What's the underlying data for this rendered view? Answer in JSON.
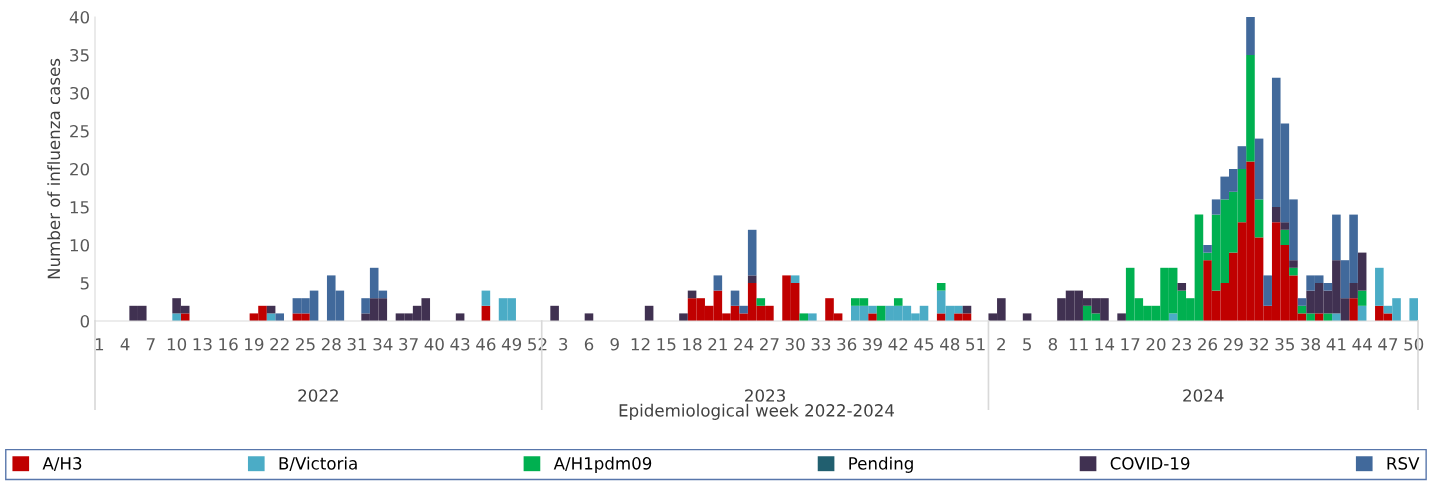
{
  "chart_data": {
    "type": "bar",
    "stacked": true,
    "xlabel": "Epidemiological week 2022-2024",
    "ylabel": "Number of influenza cases",
    "categories": [
      "1",
      null,
      null,
      "4",
      null,
      null,
      "7",
      null,
      null,
      "10",
      null,
      null,
      "13",
      null,
      null,
      "16",
      null,
      null,
      "19",
      null,
      null,
      "22",
      null,
      null,
      "25",
      null,
      null,
      "28",
      null,
      null,
      "31",
      null,
      null,
      "34",
      null,
      null,
      "37",
      null,
      null,
      "40",
      null,
      null,
      "43",
      null,
      null,
      "46",
      null,
      null,
      "49",
      null,
      null,
      "52",
      null,
      null,
      "3",
      null,
      null,
      "6",
      null,
      null,
      "9",
      null,
      null,
      "12",
      null,
      null,
      "15",
      null,
      null,
      "18",
      null,
      null,
      "21",
      null,
      null,
      "24",
      null,
      null,
      "27",
      null,
      null,
      "30",
      null,
      null,
      "33",
      null,
      null,
      "36",
      null,
      null,
      "39",
      null,
      null,
      "42",
      null,
      null,
      "45",
      null,
      null,
      "48",
      null,
      null,
      "51",
      null,
      null,
      "2",
      null,
      null,
      "5",
      null,
      null,
      "8",
      null,
      null,
      "11",
      null,
      null,
      "14",
      null,
      null,
      "17",
      null,
      null,
      "20",
      null,
      null,
      "23",
      null,
      null,
      "26",
      null,
      null,
      "29",
      null,
      null,
      "32",
      null,
      null,
      "35",
      null,
      null,
      "38",
      null,
      null,
      "41",
      null,
      null,
      "44",
      null,
      null,
      "47",
      null,
      null,
      "50"
    ],
    "series": [
      {
        "name": "A/H3",
        "color": "#c00000",
        "values": [
          0,
          0,
          0,
          0,
          0,
          0,
          0,
          0,
          0,
          0,
          1,
          0,
          0,
          0,
          0,
          0,
          0,
          0,
          1,
          2,
          0,
          0,
          0,
          1,
          1,
          0,
          0,
          0,
          0,
          0,
          0,
          0,
          0,
          0,
          0,
          0,
          0,
          0,
          0,
          0,
          0,
          0,
          0,
          0,
          0,
          2,
          0,
          0,
          0,
          0,
          0,
          0,
          0,
          0,
          0,
          0,
          0,
          0,
          0,
          0,
          0,
          0,
          0,
          0,
          0,
          0,
          0,
          0,
          0,
          3,
          3,
          2,
          4,
          1,
          2,
          1,
          5,
          2,
          2,
          0,
          6,
          5,
          0,
          0,
          0,
          3,
          1,
          0,
          0,
          0,
          1,
          0,
          0,
          0,
          0,
          0,
          0,
          0,
          1,
          0,
          1,
          1,
          0,
          0,
          0,
          0,
          0,
          0,
          0,
          0,
          0,
          0,
          0,
          0,
          0,
          0,
          0,
          0,
          0,
          0,
          0,
          0,
          0,
          0,
          0,
          0,
          0,
          0,
          0,
          8,
          4,
          5,
          9,
          13,
          21,
          11,
          2,
          13,
          10,
          6,
          1,
          0,
          1,
          0,
          0,
          0,
          3,
          0,
          0,
          2,
          1,
          0,
          0,
          0
        ]
      },
      {
        "name": "B/Victoria",
        "color": "#4bacc6",
        "values": [
          0,
          0,
          0,
          0,
          0,
          0,
          0,
          0,
          0,
          1,
          0,
          0,
          0,
          0,
          0,
          0,
          0,
          0,
          0,
          0,
          1,
          0,
          0,
          0,
          0,
          0,
          0,
          0,
          0,
          0,
          0,
          0,
          0,
          0,
          0,
          0,
          0,
          0,
          0,
          0,
          0,
          0,
          0,
          0,
          0,
          2,
          0,
          3,
          3,
          0,
          0,
          0,
          0,
          0,
          0,
          0,
          0,
          0,
          0,
          0,
          0,
          0,
          0,
          0,
          0,
          0,
          0,
          0,
          0,
          0,
          0,
          0,
          0,
          0,
          0,
          0,
          0,
          0,
          0,
          0,
          0,
          1,
          0,
          1,
          0,
          0,
          0,
          0,
          2,
          2,
          1,
          0,
          2,
          2,
          2,
          1,
          2,
          0,
          3,
          2,
          1,
          0,
          0,
          0,
          0,
          0,
          0,
          0,
          0,
          0,
          0,
          0,
          0,
          0,
          0,
          0,
          0,
          0,
          0,
          0,
          0,
          0,
          0,
          0,
          0,
          1,
          0,
          0,
          0,
          0,
          0,
          0,
          0,
          0,
          0,
          0,
          0,
          0,
          0,
          0,
          0,
          0,
          0,
          0,
          1,
          0,
          0,
          2,
          0,
          5,
          1,
          3,
          0,
          3
        ]
      },
      {
        "name": "A/H1pdm09",
        "color": "#00b050",
        "values": [
          0,
          0,
          0,
          0,
          0,
          0,
          0,
          0,
          0,
          0,
          0,
          0,
          0,
          0,
          0,
          0,
          0,
          0,
          0,
          0,
          0,
          0,
          0,
          0,
          0,
          0,
          0,
          0,
          0,
          0,
          0,
          0,
          0,
          0,
          0,
          0,
          0,
          0,
          0,
          0,
          0,
          0,
          0,
          0,
          0,
          0,
          0,
          0,
          0,
          0,
          0,
          0,
          0,
          0,
          0,
          0,
          0,
          0,
          0,
          0,
          0,
          0,
          0,
          0,
          0,
          0,
          0,
          0,
          0,
          0,
          0,
          0,
          0,
          0,
          0,
          0,
          0,
          1,
          0,
          0,
          0,
          0,
          1,
          0,
          0,
          0,
          0,
          0,
          1,
          1,
          0,
          2,
          0,
          1,
          0,
          0,
          0,
          0,
          1,
          0,
          0,
          0,
          0,
          0,
          0,
          0,
          0,
          0,
          0,
          0,
          0,
          0,
          0,
          0,
          0,
          2,
          1,
          0,
          0,
          0,
          7,
          3,
          2,
          2,
          7,
          6,
          4,
          3,
          14,
          1,
          10,
          11,
          8,
          7,
          14,
          5,
          0,
          0,
          2,
          1,
          1,
          1,
          0,
          1,
          0,
          0,
          0,
          2,
          0,
          0,
          0,
          0,
          0,
          0
        ]
      },
      {
        "name": "Pending",
        "color": "#215f6f",
        "values": [
          0,
          0,
          0,
          0,
          0,
          0,
          0,
          0,
          0,
          0,
          0,
          0,
          0,
          0,
          0,
          0,
          0,
          0,
          0,
          0,
          0,
          0,
          0,
          0,
          0,
          0,
          0,
          0,
          0,
          0,
          0,
          0,
          0,
          0,
          0,
          0,
          0,
          0,
          0,
          0,
          0,
          0,
          0,
          0,
          0,
          0,
          0,
          0,
          0,
          0,
          0,
          0,
          0,
          0,
          0,
          0,
          0,
          0,
          0,
          0,
          0,
          0,
          0,
          0,
          0,
          0,
          0,
          0,
          0,
          0,
          0,
          0,
          0,
          0,
          0,
          0,
          0,
          0,
          0,
          0,
          0,
          0,
          0,
          0,
          0,
          0,
          0,
          0,
          0,
          0,
          0,
          0,
          0,
          0,
          0,
          0,
          0,
          0,
          0,
          0,
          0,
          0,
          0,
          0,
          0,
          0,
          0,
          0,
          0,
          0,
          0,
          0,
          0,
          0,
          0,
          0,
          0,
          0,
          0,
          0,
          0,
          0,
          0,
          0,
          0,
          0,
          0,
          0,
          0,
          0,
          0,
          0,
          0,
          0,
          0,
          0,
          0,
          0,
          0,
          0,
          0,
          0,
          0,
          0,
          0,
          0,
          0,
          0,
          0,
          0,
          0,
          0,
          0,
          0
        ]
      },
      {
        "name": "COVID-19",
        "color": "#403151",
        "values": [
          0,
          0,
          0,
          0,
          2,
          2,
          0,
          0,
          0,
          2,
          1,
          0,
          0,
          0,
          0,
          0,
          0,
          0,
          0,
          0,
          1,
          0,
          0,
          0,
          0,
          0,
          0,
          0,
          0,
          0,
          0,
          1,
          3,
          3,
          0,
          1,
          1,
          2,
          3,
          0,
          0,
          0,
          1,
          0,
          0,
          0,
          0,
          0,
          0,
          0,
          0,
          0,
          0,
          2,
          0,
          0,
          0,
          1,
          0,
          0,
          0,
          0,
          0,
          0,
          2,
          0,
          0,
          0,
          1,
          1,
          0,
          0,
          0,
          0,
          0,
          0,
          1,
          0,
          0,
          0,
          0,
          0,
          0,
          0,
          0,
          0,
          0,
          0,
          0,
          0,
          0,
          0,
          0,
          0,
          0,
          0,
          0,
          0,
          0,
          0,
          0,
          1,
          0,
          0,
          1,
          3,
          0,
          0,
          1,
          0,
          0,
          0,
          3,
          4,
          4,
          1,
          2,
          3,
          0,
          1,
          0,
          0,
          0,
          0,
          0,
          0,
          1,
          0,
          0,
          0,
          0,
          0,
          0,
          0,
          0,
          0,
          0,
          2,
          1,
          1,
          0,
          3,
          4,
          3,
          7,
          3,
          2,
          5,
          0,
          0,
          0,
          0,
          0,
          0
        ]
      },
      {
        "name": "RSV",
        "color": "#41699b",
        "values": [
          0,
          0,
          0,
          0,
          0,
          0,
          0,
          0,
          0,
          0,
          0,
          0,
          0,
          0,
          0,
          0,
          0,
          0,
          0,
          0,
          0,
          1,
          0,
          2,
          2,
          4,
          0,
          6,
          4,
          0,
          0,
          2,
          4,
          1,
          0,
          0,
          0,
          0,
          0,
          0,
          0,
          0,
          0,
          0,
          0,
          0,
          0,
          0,
          0,
          0,
          0,
          0,
          0,
          0,
          0,
          0,
          0,
          0,
          0,
          0,
          0,
          0,
          0,
          0,
          0,
          0,
          0,
          0,
          0,
          0,
          0,
          0,
          2,
          0,
          2,
          1,
          6,
          0,
          0,
          0,
          0,
          0,
          0,
          0,
          0,
          0,
          0,
          0,
          0,
          0,
          0,
          0,
          0,
          0,
          0,
          0,
          0,
          0,
          0,
          0,
          0,
          0,
          0,
          0,
          0,
          0,
          0,
          0,
          0,
          0,
          0,
          0,
          0,
          0,
          0,
          0,
          0,
          0,
          0,
          0,
          0,
          0,
          0,
          0,
          0,
          0,
          0,
          0,
          0,
          1,
          2,
          3,
          3,
          3,
          5,
          8,
          4,
          17,
          13,
          8,
          1,
          2,
          1,
          1,
          6,
          5,
          9,
          0,
          0,
          0,
          0,
          0,
          0,
          0
        ]
      }
    ],
    "ylim": [
      0,
      40
    ],
    "yticks": [
      0,
      5,
      10,
      15,
      20,
      25,
      30,
      35,
      40
    ],
    "annotations": [
      "2022",
      "2023",
      "2024"
    ],
    "grid": false,
    "legend": "bottom"
  }
}
